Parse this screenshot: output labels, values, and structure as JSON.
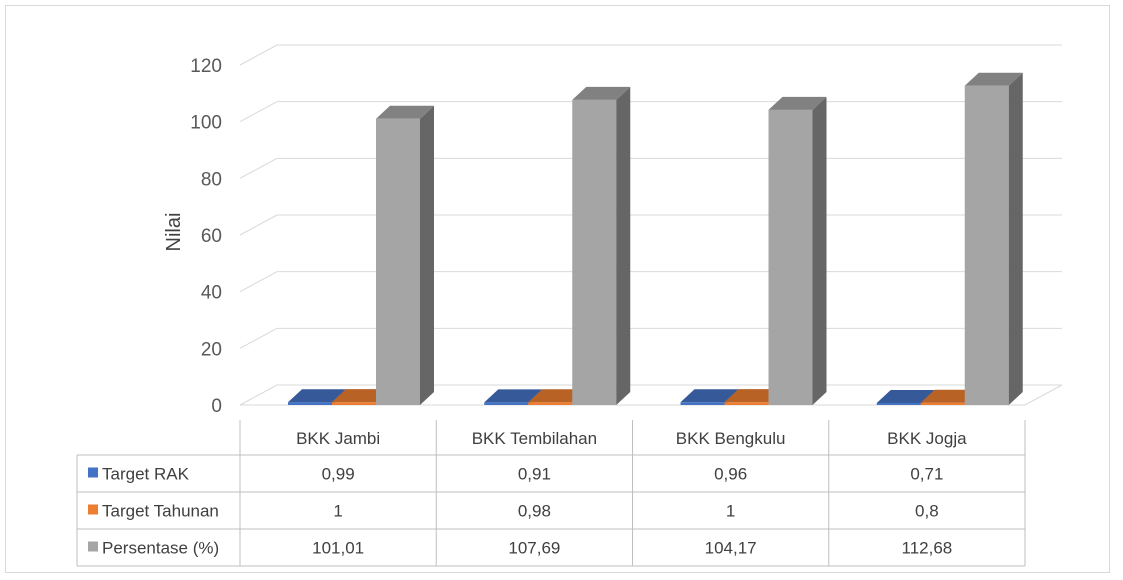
{
  "chart_data": {
    "type": "bar",
    "style": "3d-column-with-data-table",
    "title": "",
    "xlabel": "",
    "ylabel": "Nilai",
    "ylim": [
      0,
      120
    ],
    "yticks": [
      0,
      20,
      40,
      60,
      80,
      100,
      120
    ],
    "grid": true,
    "legend": "data-table-left",
    "categories": [
      "BKK Jambi",
      "BKK Tembilahan",
      "BKK Bengkulu",
      "BKK Jogja"
    ],
    "series": [
      {
        "name": "Target RAK",
        "color": "#4472c4",
        "values": [
          0.99,
          0.91,
          0.96,
          0.71
        ],
        "labels": [
          "0,99",
          "0,91",
          "0,96",
          "0,71"
        ]
      },
      {
        "name": "Target Tahunan",
        "color": "#ed7d31",
        "values": [
          1,
          0.98,
          1,
          0.8
        ],
        "labels": [
          "1",
          "0,98",
          "1",
          "0,8"
        ]
      },
      {
        "name": "Persentase (%)",
        "color": "#a5a5a5",
        "values": [
          101.01,
          107.69,
          104.17,
          112.68
        ],
        "labels": [
          "101,01",
          "107,69",
          "104,17",
          "112,68"
        ]
      }
    ]
  }
}
